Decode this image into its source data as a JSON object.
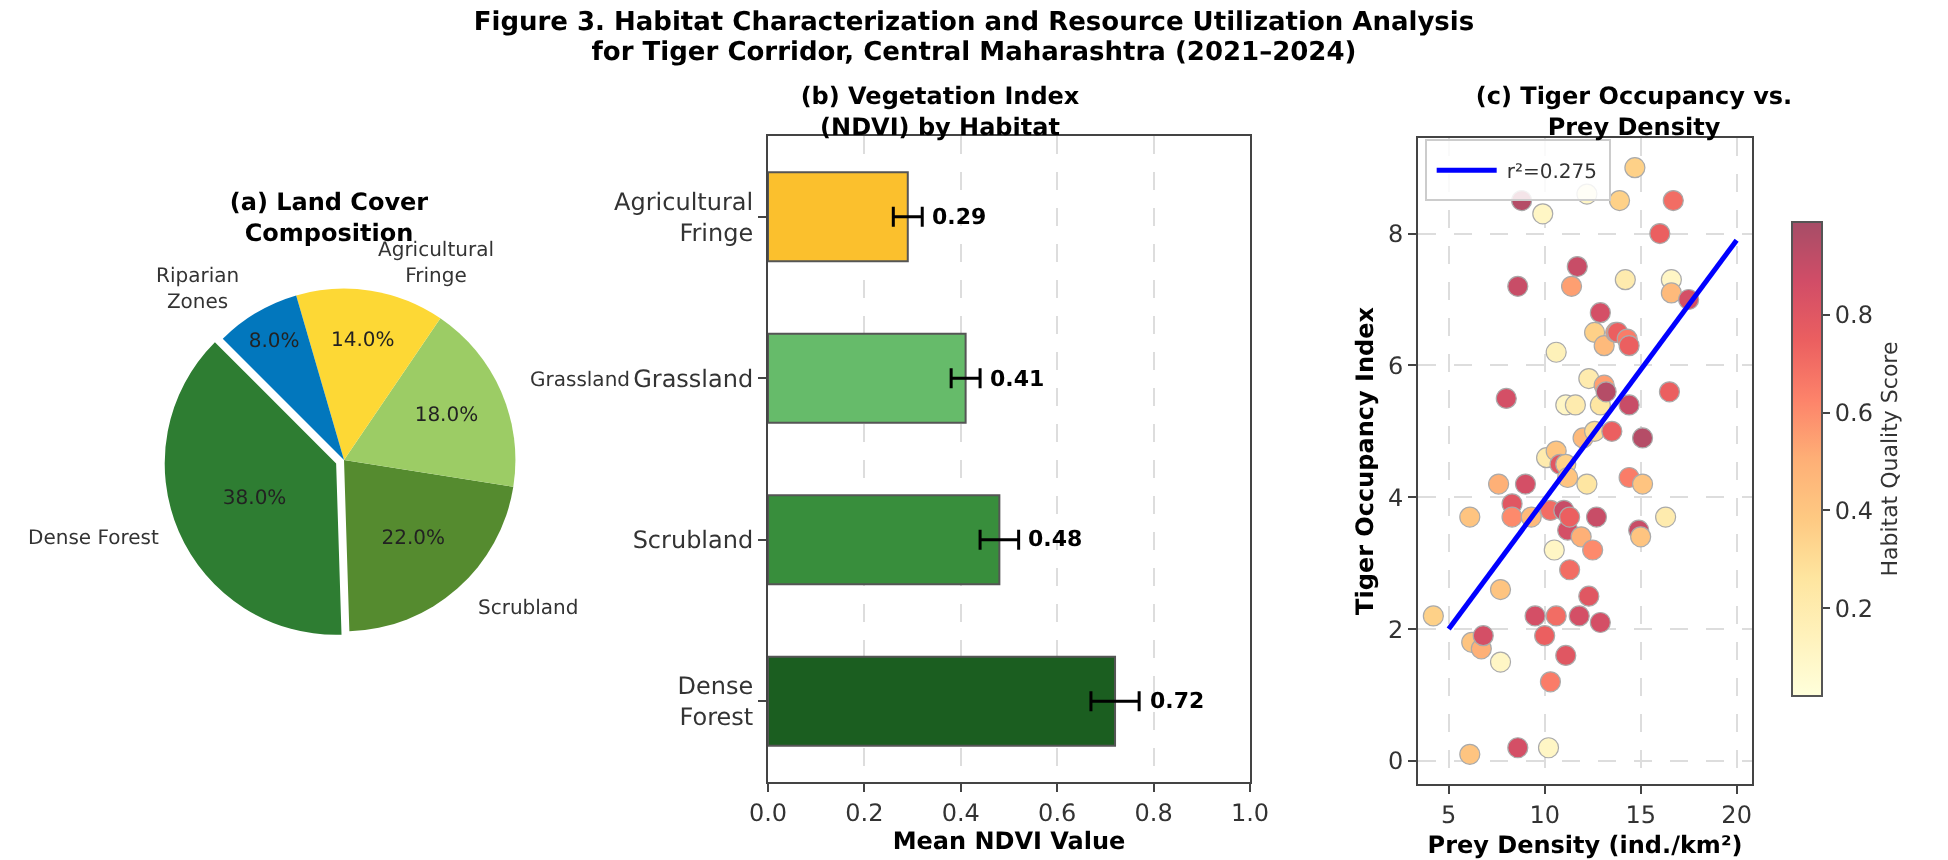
{
  "chart_data": [
    {
      "type": "other",
      "title": "Figure 3. Habitat Characterization and Resource Utilization Analysis\nfor Tiger Corridor, Central Maharashtra (2021–2024)"
    },
    {
      "type": "pie",
      "title": "(a) Land Cover\nComposition",
      "categories": [
        "Dense Forest",
        "Scrubland",
        "Grassland",
        "Agricultural Fringe",
        "Riparian Zones"
      ],
      "values": [
        38,
        22,
        18,
        14,
        8
      ],
      "colors": [
        "#2e7d32",
        "#558b2f",
        "#9ccc65",
        "#fdd835",
        "#0277bd"
      ],
      "value_labels": [
        "38.0%",
        "22.0%",
        "18.0%",
        "14.0%",
        "8.0%"
      ]
    },
    {
      "type": "bar",
      "orientation": "horizontal",
      "title": "(b) Vegetation Index\n(NDVI) by Habitat",
      "xlabel": "Mean NDVI Value",
      "categories": [
        "Agricultural Fringe",
        "Grassland",
        "Scrubland",
        "Dense Forest"
      ],
      "values": [
        0.29,
        0.41,
        0.48,
        0.72
      ],
      "colors": [
        "#fbc02d",
        "#66bb6a",
        "#388e3c",
        "#1b5e20"
      ],
      "errors": [
        0.03,
        0.03,
        0.04,
        0.05
      ],
      "data_labels": true,
      "xlim": [
        0,
        1
      ],
      "xticks": [
        {
          "value": 0,
          "label": "0.0"
        },
        {
          "value": 0.2,
          "label": "0.2"
        },
        {
          "value": 0.4,
          "label": "0.4"
        },
        {
          "value": 0.6,
          "label": "0.6"
        },
        {
          "value": 0.8,
          "label": "0.8"
        },
        {
          "value": 1,
          "label": "1.0"
        }
      ],
      "grid": "x"
    },
    {
      "type": "scatter",
      "title": "(c) Tiger Occupancy vs.\nPrey Density",
      "xlabel": "Prey Density (ind./km²)",
      "ylabel": "Tiger Occupancy Index",
      "clabel": "Habitat Quality Score",
      "xlim": [
        3.4,
        20.8
      ],
      "ylim": [
        -0.35,
        9.45
      ],
      "xticks": [
        5,
        10,
        15,
        20
      ],
      "yticks": [
        0,
        2,
        4,
        6,
        8
      ],
      "clim": [
        0.02,
        0.99
      ],
      "cticks": [
        0.2,
        0.4,
        0.6,
        0.8
      ],
      "grid": true,
      "legend": "top left",
      "series": [
        {
          "type": "scatter",
          "marker": "circle",
          "x": [
            4.2,
            6.1,
            6.1,
            6.2,
            6.7,
            6.8,
            7.7,
            7.7,
            7.6,
            8.0,
            8.3,
            8.3,
            8.6,
            8.8,
            8.6,
            9.0,
            9.3,
            9.5,
            9.9,
            10.0,
            10.1,
            10.2,
            10.3,
            10.3,
            10.6,
            10.6,
            10.5,
            10.6,
            10.8,
            11.1,
            11.0,
            11.1,
            11.1,
            11.2,
            11.2,
            11.3,
            11.3,
            11.4,
            11.6,
            11.7,
            11.8,
            11.9,
            12.0,
            12.2,
            12.3,
            12.2,
            12.3,
            12.5,
            12.6,
            12.6,
            12.7,
            12.9,
            12.9,
            12.9,
            13.1,
            13.1,
            13.2,
            13.5,
            13.7,
            13.9,
            13.8,
            14.2,
            14.3,
            14.4,
            14.4,
            14.4,
            14.7,
            14.9,
            15.0,
            15.1,
            15.1,
            16.0,
            16.3,
            16.5,
            16.6,
            16.6,
            16.7,
            17.5
          ],
          "values": [
            2.2,
            3.7,
            0.1,
            1.8,
            1.7,
            1.9,
            1.5,
            2.6,
            4.2,
            5.5,
            3.9,
            3.7,
            7.2,
            8.5,
            0.2,
            4.2,
            3.7,
            2.2,
            8.3,
            1.9,
            4.6,
            0.2,
            3.8,
            1.2,
            6.2,
            4.7,
            3.2,
            2.2,
            4.5,
            5.4,
            3.8,
            1.6,
            4.5,
            4.3,
            3.5,
            2.9,
            3.7,
            7.2,
            5.4,
            7.5,
            2.2,
            3.4,
            4.9,
            4.2,
            2.5,
            8.6,
            5.8,
            3.2,
            6.5,
            5.0,
            3.7,
            6.8,
            5.4,
            2.1,
            6.3,
            5.7,
            5.6,
            5.0,
            6.5,
            8.5,
            6.5,
            7.3,
            6.4,
            5.4,
            6.3,
            4.3,
            9.0,
            3.5,
            3.4,
            4.2,
            4.9,
            8.0,
            3.7,
            5.6,
            7.3,
            7.1,
            8.5,
            7.0
          ],
          "colors": [
            "#fed188",
            "#fec480",
            "#fec480",
            "#fec480",
            "#feb077",
            "#d44f66",
            "#fff6c5",
            "#fec480",
            "#feb077",
            "#d44f66",
            "#e05762",
            "#fd8a6c",
            "#c84d67",
            "#b54d67",
            "#d44f66",
            "#d44f66",
            "#feba7b",
            "#d44f66",
            "#fff6c5",
            "#eb5f60",
            "#feebae",
            "#fff6c5",
            "#f26d64",
            "#fa7c68",
            "#fef1b9",
            "#fec480",
            "#fff6c5",
            "#f26d64",
            "#e05762",
            "#fff6c5",
            "#c84d67",
            "#e05762",
            "#fed188",
            "#fec480",
            "#d44f66",
            "#f26d64",
            "#eb5f60",
            "#fe9f71",
            "#feebae",
            "#c84d67",
            "#d44f66",
            "#feb077",
            "#feba7b",
            "#fee6a2",
            "#e05762",
            "#fff6c5",
            "#feebae",
            "#fd8a6c",
            "#fed188",
            "#fedc95",
            "#c84d67",
            "#d44f66",
            "#fee6a2",
            "#d44f66",
            "#feba7b",
            "#fe9f71",
            "#b54d67",
            "#eb5f60",
            "#fd8a6c",
            "#fed188",
            "#eb5f60",
            "#feebae",
            "#fa7c68",
            "#c84d67",
            "#eb5f60",
            "#fa7c68",
            "#fed188",
            "#c84d67",
            "#fec480",
            "#fec480",
            "#b54d67",
            "#eb5f60",
            "#feebae",
            "#eb5f60",
            "#fff6c5",
            "#feba7b",
            "#f26d64",
            "#d44f66"
          ]
        },
        {
          "type": "line",
          "name": "r²=0.275",
          "color": "#0000ff",
          "x": [
            5,
            20
          ],
          "values": [
            2.0,
            7.9
          ]
        }
      ]
    }
  ]
}
